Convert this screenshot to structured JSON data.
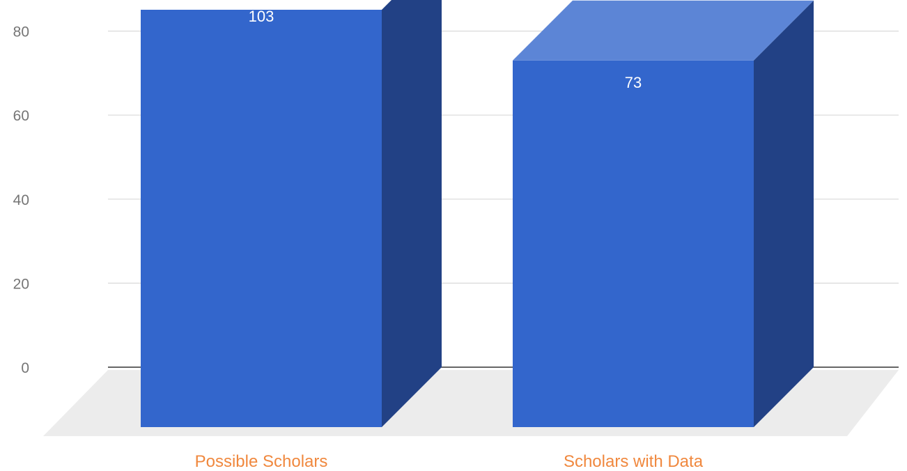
{
  "chart_data": {
    "type": "bar",
    "style": "3d",
    "categories": [
      "Possible Scholars",
      "Scholars with Data"
    ],
    "values": [
      103,
      73
    ],
    "data_labels": [
      "103",
      "73"
    ],
    "y_ticks": [
      0,
      20,
      40,
      60,
      80
    ],
    "y_tick_labels": [
      "0",
      "20",
      "40",
      "60",
      "80"
    ],
    "ylim": [
      0,
      80
    ],
    "grid": true,
    "legend": "none",
    "title": "",
    "xlabel": "",
    "ylabel": ""
  },
  "colors": {
    "bar_front": "#3366cc",
    "bar_side": "#224185",
    "bar_top": "#5c85d6",
    "floor": "#ececec",
    "gridline": "#d9d9d9",
    "baseline": "#333333",
    "tick_label": "#757575",
    "category_label": "#f0883e"
  }
}
